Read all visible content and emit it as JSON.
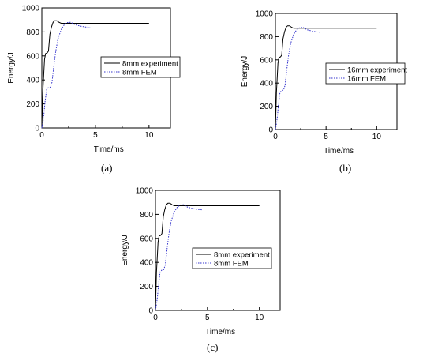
{
  "panels": [
    {
      "label": "(a)",
      "chart_data": {
        "type": "line",
        "xlabel": "Time/ms",
        "ylabel": "Energy/J",
        "xlim": [
          0,
          12
        ],
        "ylim": [
          0,
          1000
        ],
        "xticks": [
          0,
          5,
          10
        ],
        "yticks": [
          0,
          200,
          400,
          600,
          800,
          1000
        ],
        "legend_position": "center-right",
        "grid": false,
        "series": [
          {
            "name": "8mm experiment",
            "style": "solid",
            "color": "#000000",
            "points": [
              [
                0,
                0
              ],
              [
                0.1,
                320
              ],
              [
                0.25,
                570
              ],
              [
                0.35,
                620
              ],
              [
                0.5,
                625
              ],
              [
                0.62,
                640
              ],
              [
                0.75,
                780
              ],
              [
                0.9,
                840
              ],
              [
                1.05,
                880
              ],
              [
                1.2,
                893
              ],
              [
                1.4,
                893
              ],
              [
                1.6,
                880
              ],
              [
                1.8,
                872
              ],
              [
                2.5,
                872
              ],
              [
                5,
                872
              ],
              [
                7.5,
                872
              ],
              [
                10,
                872
              ]
            ]
          },
          {
            "name": "8mm FEM",
            "style": "dotted",
            "color": "#3333cc",
            "points": [
              [
                0,
                0
              ],
              [
                0.1,
                50
              ],
              [
                0.2,
                120
              ],
              [
                0.3,
                220
              ],
              [
                0.45,
                320
              ],
              [
                0.6,
                335
              ],
              [
                0.8,
                340
              ],
              [
                0.95,
                380
              ],
              [
                1.1,
                500
              ],
              [
                1.3,
                640
              ],
              [
                1.5,
                740
              ],
              [
                1.8,
                820
              ],
              [
                2.1,
                860
              ],
              [
                2.4,
                878
              ],
              [
                2.7,
                880
              ],
              [
                3.1,
                860
              ],
              [
                3.6,
                848
              ],
              [
                4.1,
                840
              ],
              [
                4.5,
                838
              ]
            ]
          }
        ]
      }
    },
    {
      "label": "(b)",
      "chart_data": {
        "type": "line",
        "xlabel": "Time/ms",
        "ylabel": "Energy/J",
        "xlim": [
          0,
          12
        ],
        "ylim": [
          0,
          1000
        ],
        "xticks": [
          0,
          5,
          10
        ],
        "yticks": [
          0,
          200,
          400,
          600,
          800,
          1000
        ],
        "legend_position": "center-right",
        "grid": false,
        "series": [
          {
            "name": "16mm experiment",
            "style": "solid",
            "color": "#000000",
            "points": [
              [
                0,
                0
              ],
              [
                0.1,
                320
              ],
              [
                0.25,
                570
              ],
              [
                0.35,
                620
              ],
              [
                0.5,
                625
              ],
              [
                0.62,
                640
              ],
              [
                0.75,
                780
              ],
              [
                0.9,
                840
              ],
              [
                1.05,
                880
              ],
              [
                1.2,
                893
              ],
              [
                1.4,
                893
              ],
              [
                1.6,
                880
              ],
              [
                1.8,
                872
              ],
              [
                2.5,
                872
              ],
              [
                5,
                872
              ],
              [
                7.5,
                872
              ],
              [
                10,
                872
              ]
            ]
          },
          {
            "name": "16mm FEM",
            "style": "dotted",
            "color": "#3333cc",
            "points": [
              [
                0,
                0
              ],
              [
                0.1,
                50
              ],
              [
                0.2,
                120
              ],
              [
                0.3,
                220
              ],
              [
                0.45,
                320
              ],
              [
                0.6,
                335
              ],
              [
                0.8,
                340
              ],
              [
                0.95,
                380
              ],
              [
                1.1,
                500
              ],
              [
                1.3,
                640
              ],
              [
                1.5,
                740
              ],
              [
                1.8,
                820
              ],
              [
                2.1,
                860
              ],
              [
                2.4,
                878
              ],
              [
                2.7,
                880
              ],
              [
                3.1,
                860
              ],
              [
                3.6,
                848
              ],
              [
                4.1,
                840
              ],
              [
                4.5,
                838
              ]
            ]
          }
        ]
      }
    },
    {
      "label": "(c)",
      "chart_data": {
        "type": "line",
        "xlabel": "Time/ms",
        "ylabel": "Energy/J",
        "xlim": [
          0,
          12
        ],
        "ylim": [
          0,
          1000
        ],
        "xticks": [
          0,
          5,
          10
        ],
        "yticks": [
          0,
          200,
          400,
          600,
          800,
          1000
        ],
        "legend_position": "center-right",
        "grid": false,
        "series": [
          {
            "name": "8mm experiment",
            "style": "solid",
            "color": "#000000",
            "points": [
              [
                0,
                0
              ],
              [
                0.1,
                320
              ],
              [
                0.25,
                570
              ],
              [
                0.35,
                620
              ],
              [
                0.5,
                625
              ],
              [
                0.62,
                640
              ],
              [
                0.75,
                780
              ],
              [
                0.9,
                840
              ],
              [
                1.05,
                880
              ],
              [
                1.2,
                893
              ],
              [
                1.4,
                893
              ],
              [
                1.6,
                880
              ],
              [
                1.8,
                872
              ],
              [
                2.5,
                872
              ],
              [
                5,
                872
              ],
              [
                7.5,
                872
              ],
              [
                10,
                872
              ]
            ]
          },
          {
            "name": "8mm FEM",
            "style": "dotted",
            "color": "#3333cc",
            "points": [
              [
                0,
                0
              ],
              [
                0.1,
                50
              ],
              [
                0.2,
                120
              ],
              [
                0.3,
                220
              ],
              [
                0.45,
                320
              ],
              [
                0.6,
                335
              ],
              [
                0.8,
                340
              ],
              [
                0.95,
                380
              ],
              [
                1.1,
                500
              ],
              [
                1.3,
                640
              ],
              [
                1.5,
                740
              ],
              [
                1.8,
                820
              ],
              [
                2.1,
                860
              ],
              [
                2.4,
                878
              ],
              [
                2.7,
                880
              ],
              [
                3.1,
                860
              ],
              [
                3.6,
                848
              ],
              [
                4.1,
                840
              ],
              [
                4.5,
                838
              ]
            ]
          }
        ]
      }
    }
  ]
}
